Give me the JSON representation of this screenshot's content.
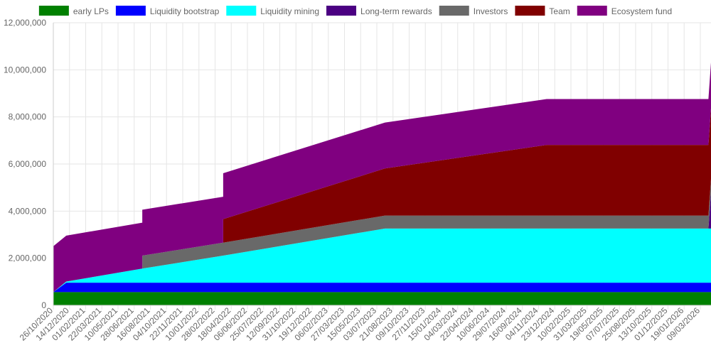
{
  "chart_data": {
    "type": "area",
    "stacked": true,
    "grid": true,
    "legend_position": "top",
    "ylim": [
      0,
      12000000
    ],
    "y_ticks": [
      0,
      2000000,
      4000000,
      6000000,
      8000000,
      10000000,
      12000000
    ],
    "y_tick_labels": [
      "0",
      "2,000,000",
      "4,000,000",
      "6,000,000",
      "8,000,000",
      "10,000,000",
      "12,000,000"
    ],
    "x_tick_labels": [
      "26/10/2020",
      "14/12/2020",
      "01/02/2021",
      "22/03/2021",
      "10/05/2021",
      "28/06/2021",
      "16/08/2021",
      "04/10/2021",
      "22/11/2021",
      "10/01/2022",
      "28/02/2022",
      "18/04/2022",
      "06/06/2022",
      "25/07/2022",
      "12/09/2022",
      "31/10/2022",
      "19/12/2022",
      "06/02/2023",
      "27/03/2023",
      "15/05/2023",
      "03/07/2023",
      "21/08/2023",
      "09/10/2023",
      "27/11/2023",
      "15/01/2024",
      "04/03/2024",
      "22/04/2024",
      "10/06/2024",
      "29/07/2024",
      "16/09/2024",
      "04/11/2024",
      "23/12/2024",
      "10/02/2025",
      "31/03/2025",
      "19/05/2025",
      "07/07/2025",
      "25/08/2025",
      "13/10/2025",
      "01/12/2025",
      "19/01/2026",
      "09/03/2026"
    ],
    "x": [
      0,
      0.8,
      5.5,
      5.5,
      10.5,
      10.5,
      20.5,
      30.5,
      36.5,
      40.5,
      52,
      58
    ],
    "series": [
      {
        "name": "early LPs",
        "color": "#008000",
        "values": [
          560000,
          560000,
          560000,
          560000,
          560000,
          560000,
          560000,
          560000,
          560000,
          560000,
          560000,
          560000
        ]
      },
      {
        "name": "Liquidity bootstrap",
        "color": "#0000ff",
        "values": [
          0,
          400000,
          400000,
          400000,
          400000,
          400000,
          400000,
          400000,
          400000,
          400000,
          400000,
          400000
        ]
      },
      {
        "name": "Liquidity mining",
        "color": "#00ffff",
        "values": [
          0,
          50000,
          600000,
          600000,
          1150000,
          1150000,
          2300000,
          2300000,
          2300000,
          2300000,
          2300000,
          2300000
        ]
      },
      {
        "name": "Long-term rewards",
        "color": "#4b0082",
        "values": [
          0,
          0,
          0,
          0,
          0,
          0,
          0,
          0,
          0,
          0,
          1550000,
          2600000
        ]
      },
      {
        "name": "Investors",
        "color": "#696969",
        "values": [
          0,
          0,
          0,
          550000,
          550000,
          550000,
          550000,
          550000,
          550000,
          550000,
          550000,
          550000
        ]
      },
      {
        "name": "Team",
        "color": "#800000",
        "values": [
          0,
          0,
          0,
          0,
          0,
          1000000,
          2000000,
          3000000,
          3000000,
          3000000,
          3000000,
          3000000
        ]
      },
      {
        "name": "Ecosystem fund",
        "color": "#800080",
        "values": [
          1950000,
          1950000,
          1950000,
          1950000,
          1950000,
          1950000,
          1950000,
          1950000,
          1950000,
          1950000,
          1950000,
          1950000
        ]
      }
    ]
  }
}
